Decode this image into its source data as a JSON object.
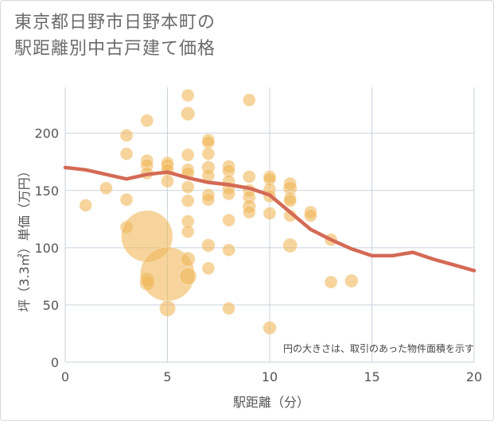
{
  "chart_data": {
    "type": "scatter",
    "title": [
      "東京都日野市日野本町の",
      "駅距離別中古戸建て価格"
    ],
    "xlabel": "駅距離（分）",
    "ylabel": "坪（3.3㎡）単価（万円）",
    "xlim": [
      0,
      20
    ],
    "ylim": [
      0,
      240
    ],
    "xticks": [
      0,
      5,
      10,
      15,
      20
    ],
    "yticks": [
      0,
      50,
      100,
      150,
      200
    ],
    "grid": true,
    "annotation": "円の大きさは、取引のあった物件面積を示す",
    "colors": {
      "bubble": "#f0b75a",
      "line": "#d46a55",
      "grid": "#c9d3dd",
      "axis_text": "#555555"
    },
    "bubbles": [
      {
        "x": 1,
        "y": 137,
        "s": 1
      },
      {
        "x": 2,
        "y": 152,
        "s": 1
      },
      {
        "x": 3,
        "y": 198,
        "s": 1
      },
      {
        "x": 3,
        "y": 182,
        "s": 1
      },
      {
        "x": 3,
        "y": 142,
        "s": 1
      },
      {
        "x": 3,
        "y": 118,
        "s": 1
      },
      {
        "x": 4,
        "y": 211,
        "s": 1
      },
      {
        "x": 4,
        "y": 176,
        "s": 1
      },
      {
        "x": 4,
        "y": 172,
        "s": 1
      },
      {
        "x": 4,
        "y": 165,
        "s": 1
      },
      {
        "x": 4,
        "y": 110,
        "s": 9
      },
      {
        "x": 4,
        "y": 72,
        "s": 1.3
      },
      {
        "x": 4,
        "y": 69,
        "s": 1.3
      },
      {
        "x": 5,
        "y": 174,
        "s": 1
      },
      {
        "x": 5,
        "y": 172,
        "s": 1
      },
      {
        "x": 5,
        "y": 168,
        "s": 1
      },
      {
        "x": 5,
        "y": 158,
        "s": 1
      },
      {
        "x": 5,
        "y": 77,
        "s": 10
      },
      {
        "x": 5,
        "y": 47,
        "s": 1.6
      },
      {
        "x": 6,
        "y": 233,
        "s": 1
      },
      {
        "x": 6,
        "y": 217,
        "s": 1.2
      },
      {
        "x": 6,
        "y": 181,
        "s": 1
      },
      {
        "x": 6,
        "y": 168,
        "s": 1
      },
      {
        "x": 6,
        "y": 165,
        "s": 1
      },
      {
        "x": 6,
        "y": 153,
        "s": 1
      },
      {
        "x": 6,
        "y": 141,
        "s": 1
      },
      {
        "x": 6,
        "y": 123,
        "s": 1
      },
      {
        "x": 6,
        "y": 114,
        "s": 1
      },
      {
        "x": 6,
        "y": 90,
        "s": 1.3
      },
      {
        "x": 6,
        "y": 75,
        "s": 1.8
      },
      {
        "x": 7,
        "y": 194,
        "s": 1
      },
      {
        "x": 7,
        "y": 192,
        "s": 1
      },
      {
        "x": 7,
        "y": 182,
        "s": 1
      },
      {
        "x": 7,
        "y": 170,
        "s": 1.1
      },
      {
        "x": 7,
        "y": 163,
        "s": 1
      },
      {
        "x": 7,
        "y": 146,
        "s": 1
      },
      {
        "x": 7,
        "y": 142,
        "s": 1
      },
      {
        "x": 7,
        "y": 102,
        "s": 1.1
      },
      {
        "x": 7,
        "y": 82,
        "s": 1
      },
      {
        "x": 8,
        "y": 171,
        "s": 1
      },
      {
        "x": 8,
        "y": 167,
        "s": 1
      },
      {
        "x": 8,
        "y": 158,
        "s": 1
      },
      {
        "x": 8,
        "y": 152,
        "s": 1
      },
      {
        "x": 8,
        "y": 147,
        "s": 1
      },
      {
        "x": 8,
        "y": 124,
        "s": 1
      },
      {
        "x": 8,
        "y": 98,
        "s": 1
      },
      {
        "x": 8,
        "y": 47,
        "s": 1
      },
      {
        "x": 9,
        "y": 229,
        "s": 1
      },
      {
        "x": 9,
        "y": 162,
        "s": 1
      },
      {
        "x": 9,
        "y": 150,
        "s": 1
      },
      {
        "x": 9,
        "y": 144,
        "s": 1
      },
      {
        "x": 9,
        "y": 136,
        "s": 1.1
      },
      {
        "x": 9,
        "y": 131,
        "s": 1
      },
      {
        "x": 10,
        "y": 162,
        "s": 1
      },
      {
        "x": 10,
        "y": 160,
        "s": 1
      },
      {
        "x": 10,
        "y": 151,
        "s": 1
      },
      {
        "x": 10,
        "y": 145,
        "s": 1
      },
      {
        "x": 10,
        "y": 130,
        "s": 1
      },
      {
        "x": 10,
        "y": 30,
        "s": 1.1
      },
      {
        "x": 11,
        "y": 156,
        "s": 1
      },
      {
        "x": 11,
        "y": 152,
        "s": 1.2
      },
      {
        "x": 11,
        "y": 143,
        "s": 1
      },
      {
        "x": 11,
        "y": 141,
        "s": 1
      },
      {
        "x": 11,
        "y": 128,
        "s": 1
      },
      {
        "x": 11,
        "y": 102,
        "s": 1.3
      },
      {
        "x": 12,
        "y": 131,
        "s": 1
      },
      {
        "x": 12,
        "y": 128,
        "s": 1
      },
      {
        "x": 13,
        "y": 107,
        "s": 1
      },
      {
        "x": 13,
        "y": 70,
        "s": 1
      },
      {
        "x": 14,
        "y": 71,
        "s": 1.1
      }
    ],
    "trend": {
      "x": [
        0,
        1,
        2,
        3,
        4,
        5,
        6,
        7,
        8,
        9,
        10,
        11,
        12,
        13,
        14,
        15,
        16,
        17,
        18,
        19,
        20
      ],
      "y": [
        170,
        168,
        164,
        160,
        164,
        166,
        161,
        157,
        155,
        152,
        146,
        131,
        116,
        107,
        99,
        93,
        93,
        96,
        90,
        85,
        80
      ]
    }
  }
}
